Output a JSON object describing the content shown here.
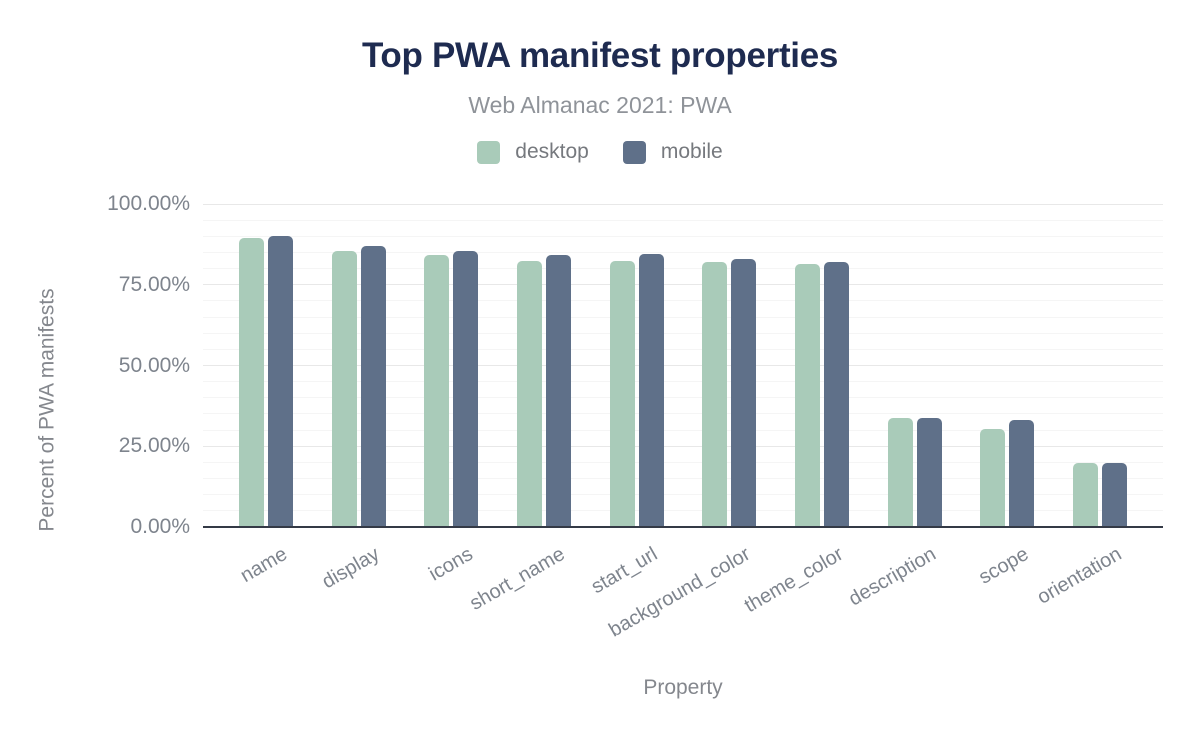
{
  "colors": {
    "background": "#ffffff",
    "title": "#1e2b50",
    "subtitle": "#8f9399",
    "legend_text": "#76797e",
    "tick_text": "#7e848d",
    "axis_title_text": "#84878d",
    "desktop": "#a9cbb9",
    "mobile": "#5f7089",
    "axis_line": "#343a46",
    "grid_major": "#e8e8e8",
    "grid_minor": "#f5f5f5"
  },
  "chart_data": {
    "type": "bar",
    "title": "Top PWA manifest properties",
    "subtitle": "Web Almanac 2021: PWA",
    "xlabel": "Property",
    "ylabel": "Percent of PWA manifests",
    "ylim": [
      0,
      100
    ],
    "grid": {
      "minor_step_pct": 5,
      "major_step_pct": 25
    },
    "legend_position": "top",
    "categories": [
      "name",
      "display",
      "icons",
      "short_name",
      "start_url",
      "background_color",
      "theme_color",
      "description",
      "scope",
      "orientation"
    ],
    "series": [
      {
        "name": "desktop",
        "color": "#a9cbb9",
        "values": [
          89.5,
          85.6,
          84.3,
          82.5,
          82.5,
          82.0,
          81.3,
          33.6,
          30.5,
          19.8
        ]
      },
      {
        "name": "mobile",
        "color": "#5f7089",
        "values": [
          90.0,
          86.9,
          85.5,
          84.3,
          84.4,
          83.0,
          82.1,
          33.6,
          33.1,
          19.8
        ]
      }
    ],
    "yticks": [
      {
        "value": 100,
        "label": "100.00%"
      },
      {
        "value": 75,
        "label": "75.00%"
      },
      {
        "value": 50,
        "label": "50.00%"
      },
      {
        "value": 25,
        "label": "25.00%"
      },
      {
        "value": 0,
        "label": "0.00%"
      }
    ]
  }
}
